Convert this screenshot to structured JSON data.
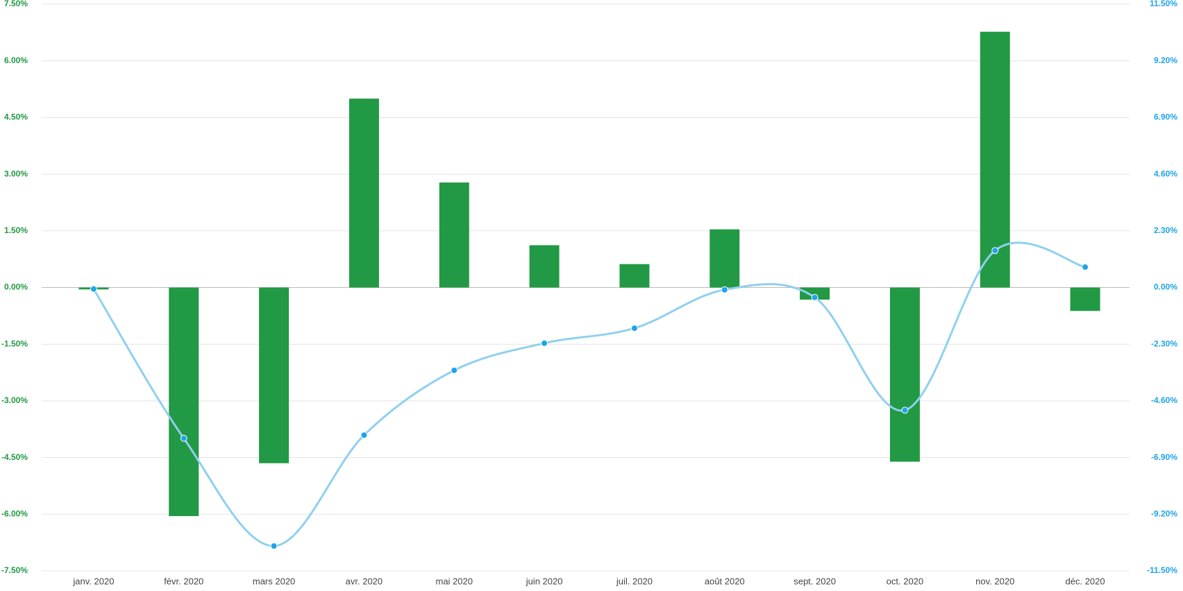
{
  "chart_data": {
    "type": "bar",
    "categories": [
      "janv. 2020",
      "févr. 2020",
      "mars 2020",
      "avr. 2020",
      "mai 2020",
      "juin 2020",
      "juil. 2020",
      "août 2020",
      "sept. 2020",
      "oct. 2020",
      "nov. 2020",
      "déc. 2020"
    ],
    "series": [
      {
        "type": "bar",
        "color": "#229944",
        "values": [
          -0.05,
          -6.05,
          -4.65,
          5.0,
          2.78,
          1.12,
          0.62,
          1.54,
          -0.32,
          -4.61,
          6.77,
          -0.62
        ]
      },
      {
        "type": "line",
        "axis": "y2",
        "color": "#8fd0ef",
        "point_color": "#1ea4e9",
        "values": [
          -0.06,
          -6.12,
          -10.49,
          -5.99,
          -3.36,
          -2.26,
          -1.65,
          -0.09,
          -0.4,
          -4.98,
          1.5,
          0.83
        ]
      }
    ],
    "ylim": [
      -7.5,
      7.5
    ],
    "yticks": [
      {
        "value": 7.5,
        "label": "7.50%"
      },
      {
        "value": 6,
        "label": "6.00%"
      },
      {
        "value": 4.5,
        "label": "4.50%"
      },
      {
        "value": 3,
        "label": "3.00%"
      },
      {
        "value": 1.5,
        "label": "1.50%"
      },
      {
        "value": 0,
        "label": "0.00%"
      },
      {
        "value": -1.5,
        "label": "-1.50%"
      },
      {
        "value": -3,
        "label": "-3.00%"
      },
      {
        "value": -4.5,
        "label": "-4.50%"
      },
      {
        "value": -6,
        "label": "-6.00%"
      },
      {
        "value": -7.5,
        "label": "-7.50%"
      }
    ],
    "y2lim": [
      -11.5,
      11.5
    ],
    "y2ticks": [
      {
        "value": 11.5,
        "label": "11.50%"
      },
      {
        "value": 9.2,
        "label": "9.20%"
      },
      {
        "value": 6.9,
        "label": "6.90%"
      },
      {
        "value": 4.6,
        "label": "4.60%"
      },
      {
        "value": 2.3,
        "label": "2.30%"
      },
      {
        "value": 0,
        "label": "0.00%"
      },
      {
        "value": -2.3,
        "label": "-2.30%"
      },
      {
        "value": -4.6,
        "label": "-4.60%"
      },
      {
        "value": -6.9,
        "label": "-6.90%"
      },
      {
        "value": -9.2,
        "label": "-9.20%"
      },
      {
        "value": -11.5,
        "label": "-11.50%"
      }
    ],
    "y_tick_color": "#229944",
    "y2_tick_color": "#1ea4e9",
    "grid": true
  }
}
